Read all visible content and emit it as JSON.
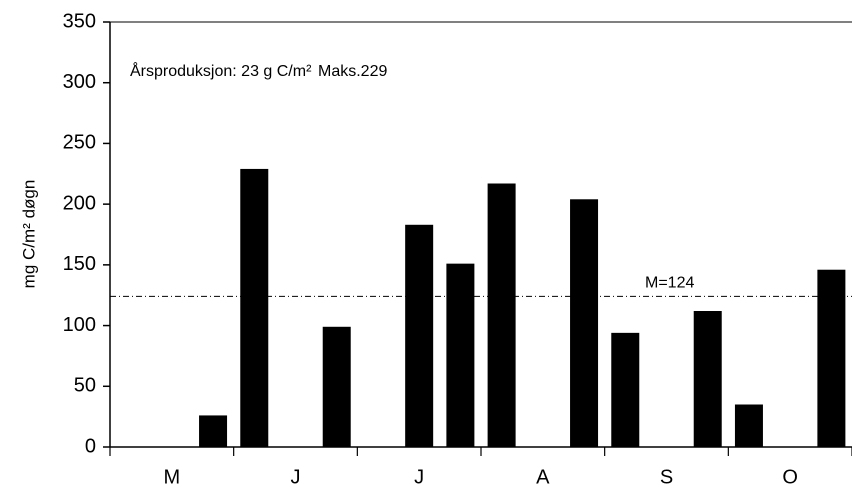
{
  "chart_data": {
    "type": "bar",
    "y_label": "mg C/m² døgn",
    "annotations": [
      "Årsproduksjon: 23 g C/m²",
      "Maks.229"
    ],
    "categories": [
      null,
      "M",
      null,
      null,
      "J",
      null,
      null,
      "J",
      null,
      null,
      "A",
      null,
      null,
      "S",
      null,
      null,
      "O",
      null
    ],
    "values": [
      null,
      null,
      26,
      229,
      null,
      99,
      null,
      183,
      151,
      217,
      null,
      204,
      94,
      null,
      112,
      35,
      null,
      146
    ],
    "color": "#000000",
    "mean": 124,
    "mean_label": "M=124",
    "ylim": [
      0,
      350
    ],
    "yticks": [
      0,
      50,
      100,
      150,
      200,
      250,
      300,
      350
    ],
    "grid": false
  }
}
